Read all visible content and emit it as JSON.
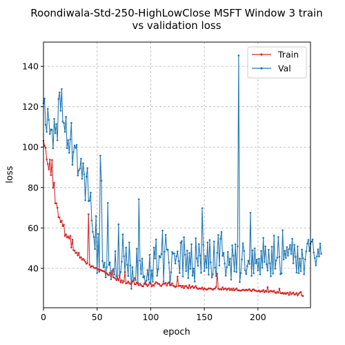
{
  "chart_data": {
    "type": "line",
    "title_line1": "Roondiwala-Std-250-HighLowClose MSFT Window 3 train",
    "title_line2": "vs validation loss",
    "xlabel": "epoch",
    "ylabel": "loss",
    "xlim": [
      0,
      249
    ],
    "ylim": [
      20.5,
      152
    ],
    "xticks": [
      0,
      50,
      100,
      150,
      200
    ],
    "yticks": [
      40,
      60,
      80,
      100,
      120,
      140
    ],
    "grid": true,
    "legend_position": "top-right",
    "series": [
      {
        "name": "Train",
        "color": "#d62728",
        "values": [
          103.2,
          100.6,
          99.7,
          93.9,
          91.7,
          89.0,
          93.8,
          86.1,
          93.6,
          79.9,
          82.4,
          72.2,
          72.2,
          70.0,
          65.4,
          65.2,
          62.9,
          63.6,
          60.9,
          61.6,
          56.1,
          56.8,
          55.3,
          55.8,
          54.8,
          56.1,
          50.3,
          54.2,
          49.0,
          48.8,
          47.6,
          47.8,
          46.4,
          47.7,
          45.2,
          45.5,
          44.3,
          44.7,
          44.1,
          43.3,
          42.3,
          42.6,
          66.8,
          41.8,
          40.7,
          41.1,
          41.0,
          40.3,
          40.1,
          40.2,
          39.9,
          39.5,
          39.0,
          39.3,
          39.0,
          38.7,
          38.7,
          38.3,
          37.5,
          37.6,
          36.9,
          36.6,
          37.9,
          36.0,
          38.8,
          35.7,
          35.4,
          35.0,
          34.2,
          35.0,
          34.1,
          36.5,
          33.0,
          34.1,
          32.9,
          33.7,
          38.2,
          32.5,
          32.8,
          33.5,
          32.7,
          32.3,
          32.5,
          33.4,
          34.0,
          32.2,
          32.1,
          33.0,
          32.4,
          31.6,
          32.5,
          31.7,
          31.2,
          31.1,
          32.5,
          33.0,
          32.0,
          31.2,
          31.9,
          33.1,
          32.4,
          31.1,
          31.8,
          31.4,
          32.5,
          33.1,
          32.8,
          32.3,
          32.2,
          31.4,
          31.3,
          32.1,
          32.6,
          32.3,
          32.8,
          31.5,
          32.6,
          33.1,
          31.6,
          31.7,
          32.6,
          31.4,
          31.2,
          30.7,
          31.1,
          35.9,
          31.3,
          31.3,
          31.4,
          30.6,
          31.4,
          30.2,
          31.2,
          31.3,
          30.7,
          30.1,
          31.7,
          30.3,
          30.8,
          31.2,
          30.3,
          30.6,
          31.3,
          30.3,
          29.8,
          30.1,
          30.0,
          29.9,
          30.5,
          29.5,
          30.1,
          29.8,
          29.5,
          29.6,
          30.1,
          30.1,
          30.0,
          29.8,
          29.4,
          29.9,
          30.1,
          30.8,
          37.4,
          29.9,
          29.6,
          29.8,
          29.5,
          30.6,
          29.6,
          29.9,
          30.1,
          29.3,
          29.9,
          30.1,
          29.2,
          29.9,
          29.2,
          30.1,
          29.1,
          29.6,
          30.1,
          29.2,
          29.1,
          29.0,
          28.9,
          29.2,
          29.5,
          29.2,
          29.1,
          29.5,
          29.1,
          29.4,
          29.7,
          29.1,
          28.8,
          29.4,
          29.6,
          29.1,
          28.9,
          28.7,
          28.7,
          29.0,
          28.4,
          28.8,
          28.6,
          29.3,
          28.2,
          28.9,
          28.5,
          30.7,
          28.2,
          28.6,
          28.9,
          28.6,
          28.5,
          28.9,
          28.0,
          27.8,
          28.3,
          28.0,
          29.9,
          27.8,
          27.6,
          27.9,
          27.4,
          27.8,
          27.3,
          27.9,
          27.8,
          26.8,
          28.2,
          27.2,
          27.5,
          28.1,
          27.0,
          27.2,
          27.8,
          26.6,
          27.4,
          27.9,
          28.3,
          26.6,
          26.3
        ]
      },
      {
        "name": "Val",
        "color": "#1f77b4",
        "values": [
          121.7,
          124.0,
          111.1,
          107.6,
          119.0,
          113.5,
          106.5,
          108.8,
          108.5,
          99.4,
          114.0,
          107.0,
          111.4,
          103.4,
          123.8,
          127.1,
          118.0,
          128.8,
          112.6,
          111.9,
          107.6,
          115.0,
          99.5,
          103.4,
          97.2,
          103.8,
          112.0,
          91.3,
          97.6,
          100.8,
          99.6,
          101.1,
          86.0,
          88.5,
          89.4,
          94.3,
          84.4,
          92.0,
          86.6,
          73.7,
          85.4,
          89.6,
          73.3,
          73.5,
          77.5,
          63.7,
          58.1,
          55.5,
          49.6,
          65.9,
          37.7,
          57.0,
          38.3,
          95.8,
          83.4,
          43.7,
          40.6,
          42.8,
          35.6,
          40.6,
          72.4,
          41.7,
          42.9,
          34.6,
          38.1,
          39.7,
          36.9,
          48.5,
          36.2,
          34.8,
          61.8,
          36.4,
          38.2,
          43.3,
          56.8,
          46.0,
          38.1,
          50.3,
          41.8,
          36.2,
          52.8,
          41.4,
          29.9,
          40.6,
          34.0,
          35.2,
          34.2,
          49.7,
          32.9,
          74.2,
          43.8,
          37.3,
          44.8,
          35.5,
          36.1,
          32.1,
          33.9,
          39.1,
          34.4,
          46.7,
          32.3,
          39.0,
          33.4,
          50.3,
          44.9,
          54.3,
          36.4,
          39.6,
          46.1,
          45.4,
          47.1,
          58.7,
          33.6,
          48.2,
          56.6,
          49.3,
          49.2,
          42.8,
          32.1,
          38.1,
          48.1,
          47.3,
          47.4,
          42.4,
          46.0,
          48.4,
          43.6,
          37.7,
          52.7,
          53.5,
          36.0,
          55.4,
          46.8,
          38.6,
          48.8,
          35.2,
          47.6,
          39.8,
          51.9,
          36.4,
          39.9,
          33.5,
          54.9,
          45.0,
          41.3,
          52.0,
          46.3,
          37.8,
          69.8,
          51.7,
          38.7,
          46.1,
          40.3,
          52.8,
          36.9,
          54.0,
          42.9,
          35.5,
          37.1,
          53.3,
          40.4,
          36.2,
          47.7,
          56.5,
          41.4,
          54.6,
          58.0,
          46.2,
          47.7,
          42.4,
          36.4,
          40.6,
          48.1,
          41.6,
          44.8,
          34.4,
          51.4,
          46.3,
          38.5,
          51.9,
          38.2,
          50.9,
          145.4,
          33.2,
          37.7,
          44.4,
          52.4,
          48.6,
          39.1,
          37.2,
          41.1,
          43.8,
          42.2,
          67.5,
          36.3,
          48.9,
          37.6,
          49.9,
          42.5,
          44.3,
          39.0,
          44.7,
          37.0,
          48.6,
          40.3,
          55.1,
          43.2,
          50.9,
          42.1,
          38.9,
          49.2,
          42.5,
          36.1,
          50.7,
          37.4,
          56.2,
          39.8,
          43.9,
          45.3,
          55.5,
          45.7,
          37.1,
          37.5,
          58.9,
          44.4,
          48.7,
          45.2,
          50.5,
          46.3,
          49.5,
          51.6,
          47.2,
          54.6,
          42.5,
          51.7,
          45.7,
          37.9,
          50.8,
          37.7,
          44.8,
          38.6,
          49.3,
          45.0,
          37.1,
          44.4,
          48.4,
          52.2,
          54.1,
          48.6,
          52.2,
          53.2,
          54.3,
          47.8,
          45.1,
          41.5,
          45.9,
          49.4,
          45.9,
          52.3,
          47.2
        ]
      }
    ]
  }
}
